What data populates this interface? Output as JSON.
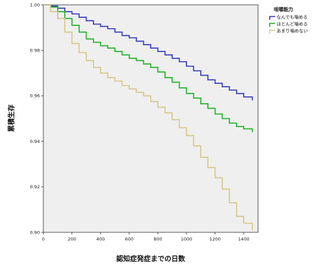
{
  "chart_data": {
    "type": "line",
    "subtype": "kaplan-meier-step",
    "xlabel": "認知症発症までの日数",
    "ylabel": "累積生存",
    "xlim": [
      0,
      1500
    ],
    "ylim": [
      0.9,
      1.0
    ],
    "x_ticks": [
      "0",
      "200",
      "400",
      "600",
      "800",
      "1000",
      "1200",
      "1400"
    ],
    "y_ticks": [
      "0.90",
      "0.92",
      "0.94",
      "0.96",
      "0.98",
      "1.00"
    ],
    "x_tick_values": [
      0,
      200,
      400,
      600,
      800,
      1000,
      1200,
      1400
    ],
    "y_tick_values": [
      0.9,
      0.92,
      0.94,
      0.96,
      0.98,
      1.0
    ],
    "grid": false,
    "plot_background": "#efefef",
    "legend": {
      "title": "咀嚼能力",
      "position": "right"
    },
    "series": [
      {
        "name": "なんでも噛める",
        "color": "#3a3fb8",
        "x": [
          0,
          50,
          100,
          150,
          200,
          250,
          300,
          350,
          400,
          450,
          500,
          550,
          600,
          650,
          700,
          750,
          800,
          850,
          900,
          950,
          1000,
          1050,
          1100,
          1150,
          1200,
          1250,
          1300,
          1350,
          1400,
          1460
        ],
        "y": [
          1.0,
          0.9995,
          0.9985,
          0.997,
          0.996,
          0.9945,
          0.993,
          0.9915,
          0.9905,
          0.9895,
          0.988,
          0.9865,
          0.9855,
          0.984,
          0.9825,
          0.981,
          0.9795,
          0.978,
          0.9765,
          0.975,
          0.973,
          0.971,
          0.969,
          0.967,
          0.9655,
          0.964,
          0.9625,
          0.961,
          0.9595,
          0.958
        ]
      },
      {
        "name": "ほとんど噛める",
        "color": "#22b22a",
        "x": [
          0,
          50,
          100,
          150,
          200,
          250,
          300,
          350,
          400,
          450,
          500,
          550,
          600,
          650,
          700,
          750,
          800,
          850,
          900,
          950,
          1000,
          1050,
          1100,
          1150,
          1200,
          1250,
          1300,
          1350,
          1400,
          1460
        ],
        "y": [
          1.0,
          0.999,
          0.997,
          0.994,
          0.991,
          0.988,
          0.985,
          0.9835,
          0.982,
          0.981,
          0.9795,
          0.978,
          0.9765,
          0.9755,
          0.974,
          0.9725,
          0.9705,
          0.968,
          0.966,
          0.9635,
          0.961,
          0.959,
          0.9565,
          0.9545,
          0.952,
          0.95,
          0.948,
          0.9465,
          0.9455,
          0.944
        ]
      },
      {
        "name": "あまり噛めない",
        "color": "#d4c98a",
        "x": [
          0,
          50,
          100,
          150,
          200,
          250,
          300,
          350,
          400,
          450,
          500,
          550,
          600,
          650,
          700,
          750,
          800,
          850,
          900,
          950,
          1000,
          1050,
          1100,
          1150,
          1200,
          1250,
          1300,
          1350,
          1400,
          1460
        ],
        "y": [
          1.0,
          0.997,
          0.994,
          0.988,
          0.983,
          0.979,
          0.9755,
          0.9725,
          0.97,
          0.968,
          0.9665,
          0.9645,
          0.963,
          0.9615,
          0.96,
          0.9575,
          0.955,
          0.9525,
          0.9495,
          0.946,
          0.9425,
          0.938,
          0.933,
          0.9285,
          0.924,
          0.919,
          0.913,
          0.907,
          0.904,
          0.901
        ]
      }
    ]
  }
}
